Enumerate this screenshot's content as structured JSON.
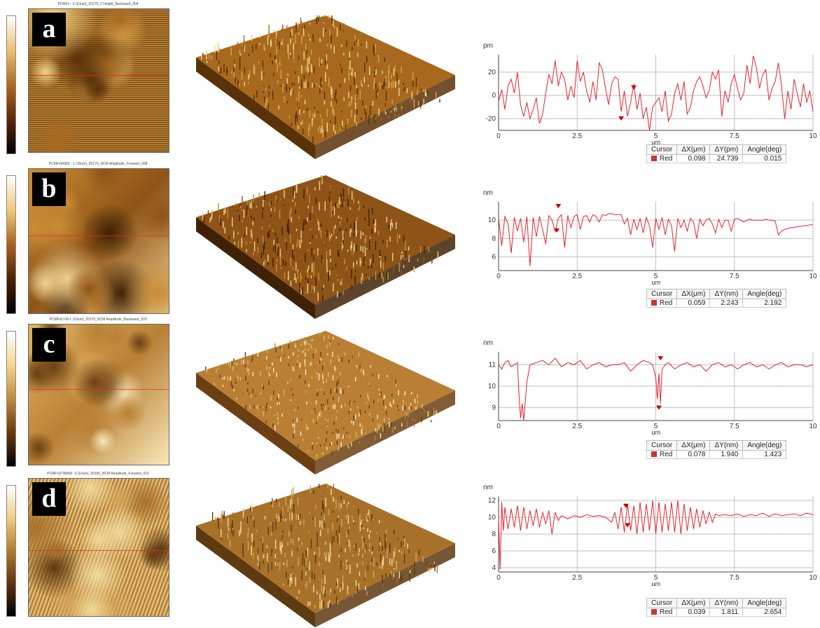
{
  "figure": {
    "colors": {
      "profile_line": "#e8232a",
      "grid": "#bfbfbf",
      "accent": "#b5651d",
      "marker": "#c00000"
    },
    "cursor_headers": [
      "Cursor",
      "ΔX(μm)",
      "ΔY({unit})",
      "Angle(deg)"
    ]
  },
  "panels": [
    {
      "letter": "a",
      "scan_title": "PCMFs - 2 (10um)_20170_2 Height_Backward_004",
      "colorbar_unit": "pm",
      "profile_unit": "pm",
      "x_label": "μm",
      "cursor": {
        "name": "Red",
        "dx": "0.098",
        "dy": "24.739",
        "angle": "0.015",
        "dy_header": "ΔY(pm)"
      },
      "colorbar_colors": [
        "#ffffff",
        "#e8c070",
        "#b06820",
        "#5a2a08",
        "#000000"
      ],
      "surface_colors": [
        "#5a3208",
        "#a8691f",
        "#d6a24a",
        "#f2d58a"
      ]
    },
    {
      "letter": "b",
      "scan_title": "PCMFsWd02 - 1 (10um)_20170_NCM Amplitude_Forward_008",
      "colorbar_unit": "nm",
      "profile_unit": "nm",
      "x_label": "μm",
      "cursor": {
        "name": "Red",
        "dx": "0.059",
        "dy": "2.243",
        "angle": "2.192",
        "dy_header": "ΔY(nm)"
      },
      "colorbar_colors": [
        "#ffffff",
        "#f0c878",
        "#a86220",
        "#4a2204",
        "#000000"
      ],
      "surface_colors": [
        "#3f2205",
        "#8e5316",
        "#c98c36",
        "#ecd08f"
      ]
    },
    {
      "letter": "c",
      "scan_title": "PCMFsD 08-1 (10um)_20170_NCM Amplitude_Backward_020",
      "colorbar_unit": "nm",
      "profile_unit": "nm",
      "x_label": "μm",
      "cursor": {
        "name": "Red",
        "dx": "0.078",
        "dy": "1.940",
        "angle": "1.423",
        "dy_header": "ΔY(nm)"
      },
      "colorbar_colors": [
        "#ffffff",
        "#f4d590",
        "#c08a3c",
        "#6a3a10",
        "#000000"
      ],
      "surface_colors": [
        "#6b3f12",
        "#b98035",
        "#e1b364",
        "#f8e7b8"
      ]
    },
    {
      "letter": "d",
      "scan_title": "PCMFsST8Wd3 -3 (10um)_20100_NCM Amplitude_Forward_015",
      "colorbar_unit": "nm",
      "profile_unit": "nm",
      "x_label": "μm",
      "cursor": {
        "name": "Red",
        "dx": "0.039",
        "dy": "1.811",
        "angle": "2.654",
        "dy_header": "ΔY(nm)"
      },
      "colorbar_colors": [
        "#ffffff",
        "#f0cc80",
        "#b47a30",
        "#5c3410",
        "#000000"
      ],
      "surface_colors": [
        "#5e3a10",
        "#a8712a",
        "#d4a458",
        "#f1d99a"
      ]
    }
  ],
  "chart_data": [
    {
      "type": "line",
      "panel": "a",
      "ylabel": "pm",
      "xlabel": "μm",
      "xlim": [
        0,
        10
      ],
      "ylim": [
        -30,
        35
      ],
      "xticks": [
        0,
        2.5,
        5,
        7.5,
        10
      ],
      "yticks": [
        -20,
        0,
        20
      ],
      "grid": true,
      "series": [
        {
          "x": [
            0,
            0.1,
            0.2,
            0.3,
            0.4,
            0.5,
            0.6,
            0.7,
            0.8,
            0.9,
            1,
            1.1,
            1.2,
            1.3,
            1.4,
            1.5,
            1.6,
            1.7,
            1.8,
            1.9,
            2,
            2.1,
            2.2,
            2.3,
            2.4,
            2.5,
            2.6,
            2.7,
            2.8,
            2.9,
            3,
            3.1,
            3.2,
            3.3,
            3.4,
            3.5,
            3.6,
            3.7,
            3.8,
            3.9,
            4,
            4.1,
            4.2,
            4.3,
            4.4,
            4.5,
            4.6,
            4.7,
            4.8,
            4.9,
            5,
            5.1,
            5.2,
            5.3,
            5.4,
            5.5,
            5.6,
            5.7,
            5.8,
            5.9,
            6,
            6.1,
            6.2,
            6.3,
            6.4,
            6.5,
            6.6,
            6.7,
            6.8,
            6.9,
            7,
            7.1,
            7.2,
            7.3,
            7.4,
            7.5,
            7.6,
            7.7,
            7.8,
            7.9,
            8,
            8.1,
            8.2,
            8.3,
            8.4,
            8.5,
            8.6,
            8.7,
            8.8,
            8.9,
            9,
            9.1,
            9.2,
            9.3,
            9.4,
            9.5,
            9.6,
            9.7,
            9.8,
            9.9,
            10
          ],
          "y": [
            -5,
            5,
            -12,
            8,
            14,
            2,
            20,
            -8,
            -18,
            -6,
            -20,
            -12,
            -2,
            -24,
            -16,
            2,
            18,
            10,
            30,
            8,
            20,
            14,
            -4,
            8,
            -2,
            30,
            12,
            20,
            4,
            -6,
            12,
            -4,
            28,
            22,
            6,
            -8,
            10,
            16,
            14,
            -14,
            4,
            -18,
            -6,
            10,
            -12,
            2,
            -20,
            -10,
            -30,
            -10,
            -6,
            -2,
            -14,
            4,
            -22,
            -16,
            2,
            10,
            -4,
            12,
            -16,
            -10,
            4,
            12,
            16,
            8,
            -2,
            4,
            20,
            14,
            22,
            -18,
            4,
            -6,
            10,
            18,
            6,
            -4,
            2,
            26,
            10,
            34,
            24,
            6,
            18,
            22,
            -4,
            6,
            12,
            28,
            8,
            -20,
            4,
            -12,
            14,
            2,
            -10,
            10,
            -6,
            4,
            -14
          ]
        }
      ],
      "cursor_markers": [
        {
          "x": 4.3,
          "y": 5
        },
        {
          "x": 3.9,
          "y": -18
        }
      ]
    },
    {
      "type": "line",
      "panel": "b",
      "ylabel": "nm",
      "xlabel": "μm",
      "xlim": [
        0,
        10
      ],
      "ylim": [
        4.5,
        12
      ],
      "xticks": [
        0,
        2.5,
        5,
        7.5,
        10
      ],
      "yticks": [
        6,
        8,
        10
      ],
      "grid": true,
      "series": [
        {
          "x": [
            0,
            0.1,
            0.2,
            0.3,
            0.4,
            0.5,
            0.6,
            0.7,
            0.8,
            0.9,
            1,
            1.1,
            1.2,
            1.3,
            1.4,
            1.5,
            1.6,
            1.7,
            1.8,
            1.9,
            2,
            2.1,
            2.2,
            2.3,
            2.4,
            2.5,
            2.6,
            2.7,
            2.8,
            2.9,
            3,
            3.1,
            3.2,
            3.3,
            3.4,
            3.5,
            3.6,
            3.7,
            3.8,
            3.9,
            4,
            4.1,
            4.2,
            4.3,
            4.4,
            4.5,
            4.6,
            4.7,
            4.8,
            4.9,
            5,
            5.1,
            5.2,
            5.3,
            5.4,
            5.5,
            5.6,
            5.7,
            5.8,
            5.9,
            6,
            6.1,
            6.2,
            6.3,
            6.4,
            6.5,
            6.6,
            6.7,
            6.8,
            6.9,
            7,
            7.1,
            7.2,
            7.3,
            7.4,
            7.5,
            7.6,
            7.7,
            7.8,
            7.9,
            8,
            8.1,
            8.2,
            8.3,
            8.4,
            8.5,
            8.6,
            8.7,
            8.8,
            8.9,
            9,
            9.1,
            9.2,
            9.3,
            9.4,
            9.5,
            9.6,
            9.7,
            9.8,
            9.9,
            10
          ],
          "y": [
            10.2,
            7.2,
            10.4,
            9.6,
            6.4,
            10.3,
            8.8,
            10.2,
            7.6,
            10.4,
            5.0,
            10.3,
            8.2,
            10.4,
            9.0,
            7.4,
            10.5,
            10.0,
            8.8,
            10.2,
            10.6,
            7.0,
            10.5,
            9.2,
            10.4,
            10.6,
            9.0,
            10.4,
            10.5,
            9.8,
            10.6,
            10.4,
            9.8,
            10.6,
            10.5,
            10.7,
            10.7,
            10.6,
            10.6,
            10.6,
            9.6,
            10.2,
            8.4,
            10.1,
            9.0,
            10.2,
            8.6,
            10.3,
            9.4,
            7.0,
            10.2,
            9.0,
            10.3,
            8.4,
            10.1,
            9.4,
            6.6,
            10.2,
            9.2,
            10.0,
            8.8,
            10.2,
            9.8,
            8.0,
            10.1,
            9.4,
            10.0,
            10.2,
            9.6,
            8.6,
            10.1,
            9.2,
            10.0,
            10.0,
            8.8,
            10.1,
            10.2,
            10.0,
            9.8,
            10.0,
            10.1,
            10.0,
            10.0,
            10.0,
            10.0,
            10.1,
            10.0,
            10.0,
            9.9,
            8.4,
            8.8,
            9.0,
            9.1,
            9.2,
            9.2,
            9.3,
            9.3,
            9.4,
            9.4,
            9.5,
            9.5
          ]
        }
      ],
      "cursor_markers": [
        {
          "x": 1.9,
          "y": 11.3
        },
        {
          "x": 1.85,
          "y": 9.1
        }
      ]
    },
    {
      "type": "line",
      "panel": "c",
      "ylabel": "nm",
      "xlabel": "μm",
      "xlim": [
        0,
        10
      ],
      "ylim": [
        8.4,
        11.6
      ],
      "xticks": [
        0,
        2.5,
        5,
        7.5,
        10
      ],
      "yticks": [
        9,
        10,
        11
      ],
      "grid": true,
      "series": [
        {
          "x": [
            0,
            0.1,
            0.2,
            0.3,
            0.4,
            0.5,
            0.6,
            0.65,
            0.7,
            0.75,
            0.8,
            0.9,
            1,
            1.2,
            1.4,
            1.6,
            1.8,
            2,
            2.2,
            2.4,
            2.6,
            2.8,
            3,
            3.2,
            3.4,
            3.6,
            3.8,
            4,
            4.2,
            4.4,
            4.6,
            4.8,
            4.9,
            5,
            5.05,
            5.1,
            5.15,
            5.2,
            5.3,
            5.4,
            5.6,
            5.8,
            6,
            6.2,
            6.4,
            6.6,
            6.8,
            7,
            7.2,
            7.4,
            7.6,
            7.8,
            8,
            8.2,
            8.4,
            8.6,
            8.8,
            9,
            9.2,
            9.4,
            9.6,
            9.8,
            10
          ],
          "y": [
            11.0,
            10.8,
            11.1,
            11.2,
            10.9,
            11.0,
            11.1,
            9.6,
            8.5,
            9.2,
            8.4,
            10.2,
            11.0,
            11.1,
            11.2,
            11.0,
            11.3,
            10.9,
            11.1,
            11.0,
            11.2,
            10.8,
            11.0,
            11.1,
            10.9,
            11.0,
            11.0,
            11.1,
            10.7,
            11.0,
            11.2,
            11.1,
            11.0,
            10.4,
            9.4,
            10.6,
            9.2,
            10.8,
            11.0,
            11.1,
            10.8,
            11.0,
            11.1,
            10.9,
            11.0,
            10.7,
            11.0,
            11.1,
            10.9,
            11.0,
            10.8,
            11.0,
            11.1,
            10.9,
            11.0,
            10.8,
            11.0,
            11.1,
            10.9,
            11.0,
            11.0,
            10.9,
            11.0
          ]
        }
      ],
      "cursor_markers": [
        {
          "x": 5.15,
          "y": 11.2
        },
        {
          "x": 5.1,
          "y": 9.1
        }
      ]
    },
    {
      "type": "line",
      "panel": "d",
      "ylabel": "nm",
      "xlabel": "μm",
      "xlim": [
        0,
        10
      ],
      "ylim": [
        3.5,
        12.5
      ],
      "xticks": [
        0,
        2.5,
        5,
        7.5,
        10
      ],
      "yticks": [
        4,
        6,
        8,
        10,
        12
      ],
      "grid": true,
      "series": [
        {
          "x": [
            0,
            0.05,
            0.1,
            0.15,
            0.2,
            0.3,
            0.4,
            0.5,
            0.6,
            0.7,
            0.8,
            0.9,
            1,
            1.1,
            1.2,
            1.3,
            1.4,
            1.5,
            1.6,
            1.7,
            1.8,
            1.9,
            2,
            2.2,
            2.4,
            2.6,
            2.8,
            3,
            3.2,
            3.4,
            3.6,
            3.7,
            3.8,
            3.9,
            4,
            4.1,
            4.2,
            4.3,
            4.4,
            4.5,
            4.6,
            4.7,
            4.8,
            4.9,
            5,
            5.1,
            5.2,
            5.3,
            5.4,
            5.5,
            5.6,
            5.7,
            5.8,
            5.9,
            6,
            6.1,
            6.2,
            6.3,
            6.4,
            6.5,
            6.6,
            6.7,
            6.8,
            6.9,
            7,
            7.2,
            7.4,
            7.6,
            7.8,
            8,
            8.2,
            8.4,
            8.6,
            8.8,
            9,
            9.2,
            9.4,
            9.6,
            9.8,
            10
          ],
          "y": [
            10.0,
            3.8,
            11.8,
            8.4,
            11.2,
            8.6,
            11.0,
            8.8,
            11.4,
            8.4,
            11.2,
            8.6,
            10.8,
            9.0,
            11.0,
            8.8,
            10.6,
            9.2,
            10.8,
            8.0,
            10.6,
            9.6,
            10.2,
            9.8,
            10.2,
            10.0,
            10.3,
            10.1,
            10.2,
            10.0,
            9.4,
            10.6,
            8.6,
            11.2,
            8.2,
            11.6,
            8.4,
            11.4,
            8.0,
            11.8,
            8.2,
            11.6,
            8.4,
            12.0,
            8.0,
            11.8,
            8.2,
            11.6,
            8.4,
            11.8,
            8.2,
            12.0,
            8.0,
            11.6,
            8.4,
            11.2,
            8.6,
            11.0,
            8.8,
            10.8,
            9.2,
            10.6,
            9.4,
            10.4,
            10.2,
            10.3,
            10.2,
            10.4,
            10.1,
            10.3,
            10.2,
            10.5,
            10.1,
            10.4,
            10.2,
            10.3,
            10.4,
            10.2,
            10.5,
            10.3
          ]
        }
      ],
      "cursor_markers": [
        {
          "x": 4.05,
          "y": 11.1
        },
        {
          "x": 4.1,
          "y": 9.3
        }
      ]
    }
  ]
}
